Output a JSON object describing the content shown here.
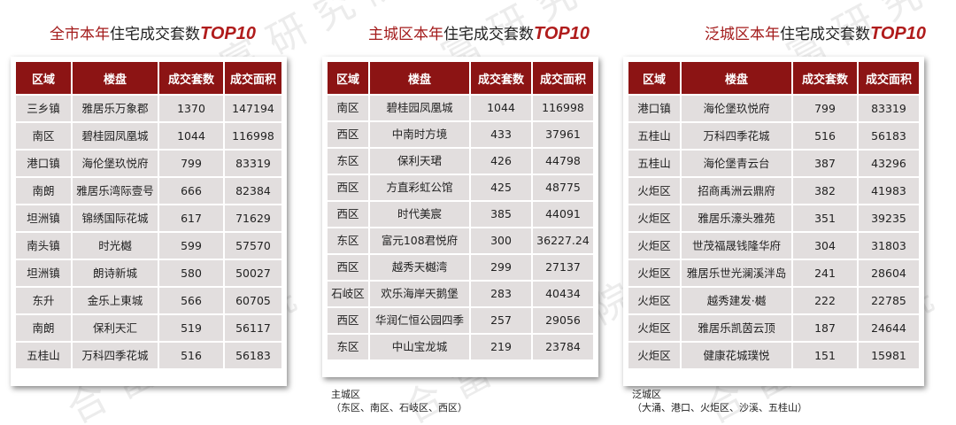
{
  "panels": [
    {
      "title_prefix": "全市",
      "title_mid": "本年",
      "title_suffix": "住宅成交套数",
      "title_top": "TOP10",
      "headers": [
        "区域",
        "楼盘",
        "成交套数",
        "成交面积"
      ],
      "rows": [
        [
          "三乡镇",
          "雅居乐万象郡",
          "1370",
          "147194"
        ],
        [
          "南区",
          "碧桂园凤凰城",
          "1044",
          "116998"
        ],
        [
          "港口镇",
          "海伦堡玖悦府",
          "799",
          "83319"
        ],
        [
          "南朗",
          "雅居乐湾际壹号",
          "666",
          "82384"
        ],
        [
          "坦洲镇",
          "锦绣国际花城",
          "617",
          "71629"
        ],
        [
          "南头镇",
          "时光樾",
          "599",
          "57570"
        ],
        [
          "坦洲镇",
          "朗诗新城",
          "580",
          "50027"
        ],
        [
          "东升",
          "金乐上東城",
          "566",
          "60705"
        ],
        [
          "南朗",
          "保利天汇",
          "519",
          "56117"
        ],
        [
          "五桂山",
          "万科四季花城",
          "516",
          "56183"
        ]
      ]
    },
    {
      "title_prefix": "主城区",
      "title_mid": "本年",
      "title_suffix": "住宅成交套数",
      "title_top": "TOP10",
      "headers": [
        "区域",
        "楼盘",
        "成交套数",
        "成交面积"
      ],
      "rows": [
        [
          "南区",
          "碧桂园凤凰城",
          "1044",
          "116998"
        ],
        [
          "西区",
          "中南时方境",
          "433",
          "37961"
        ],
        [
          "东区",
          "保利天珺",
          "426",
          "44798"
        ],
        [
          "西区",
          "方直彩虹公馆",
          "425",
          "48775"
        ],
        [
          "西区",
          "时代美宸",
          "385",
          "44091"
        ],
        [
          "东区",
          "富元108君悦府",
          "300",
          "36227.24"
        ],
        [
          "西区",
          "越秀天樾湾",
          "299",
          "27137"
        ],
        [
          "石岐区",
          "欢乐海岸天鹅堡",
          "283",
          "40434"
        ],
        [
          "西区",
          "华润仁恒公园四季",
          "257",
          "29056"
        ],
        [
          "东区",
          "中山宝龙城",
          "219",
          "23784"
        ]
      ],
      "note_line1": "主城区",
      "note_line2": "（东区、南区、石岐区、西区）"
    },
    {
      "title_prefix": "泛城区",
      "title_mid": "本年",
      "title_suffix": "住宅成交套数",
      "title_top": "TOP10",
      "headers": [
        "区域",
        "楼盘",
        "成交套数",
        "成交面积"
      ],
      "rows": [
        [
          "港口镇",
          "海伦堡玖悦府",
          "799",
          "83319"
        ],
        [
          "五桂山",
          "万科四季花城",
          "516",
          "56183"
        ],
        [
          "五桂山",
          "海伦堡青云台",
          "387",
          "43296"
        ],
        [
          "火炬区",
          "招商禹洲云鼎府",
          "382",
          "41983"
        ],
        [
          "火炬区",
          "雅居乐濠头雅苑",
          "351",
          "39235"
        ],
        [
          "火炬区",
          "世茂福晟钱隆华府",
          "304",
          "31803"
        ],
        [
          "火炬区",
          "雅居乐世光澜溪泮岛",
          "241",
          "28604"
        ],
        [
          "火炬区",
          "越秀建发·樾",
          "222",
          "22785"
        ],
        [
          "火炬区",
          "雅居乐凯茵云顶",
          "187",
          "24644"
        ],
        [
          "火炬区",
          "健康花城璞悦",
          "151",
          "15981"
        ]
      ],
      "note_line1": "泛城区",
      "note_line2": "（大涌、港口、火炬区、沙溪、五桂山）"
    }
  ],
  "watermark": "合富研究院"
}
